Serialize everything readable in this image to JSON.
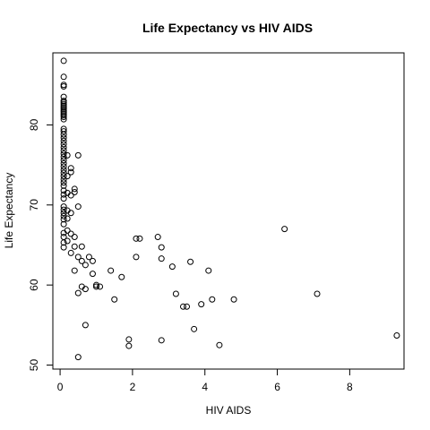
{
  "chart_data": {
    "type": "scatter",
    "title": "Life Expectancy vs  HIV AIDS",
    "xlabel": "HIV AIDS",
    "ylabel": "Life Expectancy",
    "xlim": [
      -0.2,
      9.5
    ],
    "ylim": [
      49.5,
      89
    ],
    "xticks": [
      0,
      2,
      4,
      6,
      8
    ],
    "yticks": [
      50,
      60,
      70,
      80
    ],
    "grid": false,
    "marker": "open-circle",
    "color": "#000000",
    "points": [
      [
        0.1,
        88.0
      ],
      [
        0.1,
        86.0
      ],
      [
        0.1,
        85.0
      ],
      [
        0.1,
        84.8
      ],
      [
        0.1,
        83.5
      ],
      [
        0.1,
        83.0
      ],
      [
        0.1,
        82.8
      ],
      [
        0.1,
        82.6
      ],
      [
        0.1,
        82.4
      ],
      [
        0.1,
        82.2
      ],
      [
        0.1,
        82.0
      ],
      [
        0.1,
        81.8
      ],
      [
        0.1,
        81.6
      ],
      [
        0.1,
        81.4
      ],
      [
        0.1,
        81.2
      ],
      [
        0.1,
        81.0
      ],
      [
        0.1,
        80.7
      ],
      [
        0.1,
        79.5
      ],
      [
        0.1,
        79.2
      ],
      [
        0.1,
        78.8
      ],
      [
        0.1,
        78.4
      ],
      [
        0.1,
        78.0
      ],
      [
        0.1,
        77.6
      ],
      [
        0.1,
        77.2
      ],
      [
        0.1,
        76.8
      ],
      [
        0.1,
        76.4
      ],
      [
        0.1,
        76.0
      ],
      [
        0.1,
        75.6
      ],
      [
        0.1,
        75.2
      ],
      [
        0.1,
        74.8
      ],
      [
        0.1,
        74.4
      ],
      [
        0.1,
        74.0
      ],
      [
        0.1,
        73.6
      ],
      [
        0.1,
        73.2
      ],
      [
        0.1,
        72.8
      ],
      [
        0.1,
        72.4
      ],
      [
        0.1,
        71.8
      ],
      [
        0.1,
        71.3
      ],
      [
        0.1,
        70.8
      ],
      [
        0.1,
        69.8
      ],
      [
        0.1,
        69.4
      ],
      [
        0.1,
        69.0
      ],
      [
        0.1,
        68.6
      ],
      [
        0.1,
        68.2
      ],
      [
        0.1,
        67.6
      ],
      [
        0.1,
        66.5
      ],
      [
        0.1,
        66.0
      ],
      [
        0.1,
        65.3
      ],
      [
        0.1,
        64.7
      ],
      [
        0.2,
        76.2
      ],
      [
        0.2,
        73.6
      ],
      [
        0.2,
        71.5
      ],
      [
        0.2,
        69.3
      ],
      [
        0.2,
        68.3
      ],
      [
        0.2,
        66.8
      ],
      [
        0.2,
        65.5
      ],
      [
        0.3,
        74.6
      ],
      [
        0.3,
        74.1
      ],
      [
        0.3,
        71.2
      ],
      [
        0.3,
        69.0
      ],
      [
        0.3,
        66.4
      ],
      [
        0.3,
        64.0
      ],
      [
        0.4,
        72.0
      ],
      [
        0.4,
        71.6
      ],
      [
        0.4,
        66.0
      ],
      [
        0.4,
        64.8
      ],
      [
        0.4,
        61.8
      ],
      [
        0.5,
        76.2
      ],
      [
        0.5,
        69.8
      ],
      [
        0.5,
        63.5
      ],
      [
        0.5,
        59.0
      ],
      [
        0.5,
        51.0
      ],
      [
        0.6,
        64.8
      ],
      [
        0.6,
        63.0
      ],
      [
        0.6,
        59.8
      ],
      [
        0.7,
        62.5
      ],
      [
        0.7,
        59.5
      ],
      [
        0.7,
        55.0
      ],
      [
        0.8,
        63.5
      ],
      [
        0.9,
        63.0
      ],
      [
        0.9,
        61.4
      ],
      [
        1.0,
        60.0
      ],
      [
        1.0,
        59.8
      ],
      [
        1.1,
        59.8
      ],
      [
        1.4,
        61.8
      ],
      [
        1.5,
        58.2
      ],
      [
        1.7,
        61.0
      ],
      [
        1.9,
        53.2
      ],
      [
        1.9,
        52.4
      ],
      [
        2.1,
        65.8
      ],
      [
        2.1,
        63.5
      ],
      [
        2.2,
        65.8
      ],
      [
        2.7,
        66.0
      ],
      [
        2.8,
        64.7
      ],
      [
        2.8,
        63.3
      ],
      [
        2.8,
        53.1
      ],
      [
        3.1,
        62.3
      ],
      [
        3.2,
        58.9
      ],
      [
        3.4,
        57.3
      ],
      [
        3.5,
        57.3
      ],
      [
        3.6,
        62.9
      ],
      [
        3.7,
        54.5
      ],
      [
        3.9,
        57.6
      ],
      [
        4.1,
        61.8
      ],
      [
        4.2,
        58.2
      ],
      [
        4.4,
        52.5
      ],
      [
        4.8,
        58.2
      ],
      [
        6.2,
        67.0
      ],
      [
        7.1,
        58.9
      ],
      [
        9.3,
        53.7
      ]
    ]
  }
}
